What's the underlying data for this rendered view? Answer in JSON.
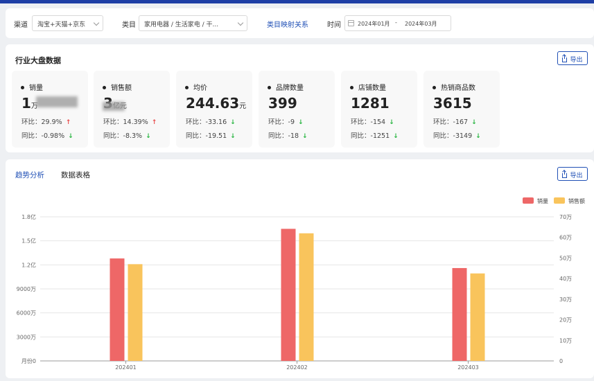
{
  "filters": {
    "channel_label": "渠道",
    "channel_value": "淘宝+天猫+京东",
    "category_label": "类目",
    "category_value": "家用电器 / 生活家电 / 干...",
    "mapping_link": "类目映射关系",
    "time_label": "时间",
    "time_start": "2024年01月",
    "time_separator": "-",
    "time_end": "2024年03月"
  },
  "overview": {
    "title": "行业大盘数据",
    "export_label": "导出",
    "metrics": [
      {
        "name": "销量",
        "value": "1",
        "unit": "万",
        "mom_label": "环比：",
        "mom": "29.9%",
        "mom_dir": "up",
        "yoy_label": "同比：",
        "yoy": "-0.98%",
        "yoy_dir": "down"
      },
      {
        "name": "销售额",
        "value": "3",
        "unit": "亿元",
        "mom_label": "环比：",
        "mom": "14.39%",
        "mom_dir": "up",
        "yoy_label": "同比：",
        "yoy": "-8.3%",
        "yoy_dir": "down"
      },
      {
        "name": "均价",
        "value": "244.63",
        "unit": "元",
        "mom_label": "环比：",
        "mom": "-33.16",
        "mom_dir": "down",
        "yoy_label": "同比：",
        "yoy": "-19.51",
        "yoy_dir": "down"
      },
      {
        "name": "品牌数量",
        "value": "399",
        "unit": "",
        "mom_label": "环比：",
        "mom": "-9",
        "mom_dir": "down",
        "yoy_label": "同比：",
        "yoy": "-18",
        "yoy_dir": "down"
      },
      {
        "name": "店铺数量",
        "value": "1281",
        "unit": "",
        "mom_label": "环比：",
        "mom": "-154",
        "mom_dir": "down",
        "yoy_label": "同比：",
        "yoy": "-1251",
        "yoy_dir": "down"
      },
      {
        "name": "热销商品数",
        "value": "3615",
        "unit": "",
        "mom_label": "环比：",
        "mom": "-167",
        "mom_dir": "down",
        "yoy_label": "同比：",
        "yoy": "-3149",
        "yoy_dir": "down"
      }
    ],
    "arrow_up": "↑",
    "arrow_down": "↓"
  },
  "trend": {
    "tab_trend": "趋势分析",
    "tab_table": "数据表格",
    "export_label": "导出"
  },
  "colors": {
    "primary": "#1f4fb5",
    "sales_volume": "#ee6767",
    "sales_amount": "#f9c45c",
    "up": "#e84a4a",
    "down": "#25b43e"
  },
  "chart_data": {
    "type": "bar",
    "categories": [
      "202401",
      "202402",
      "202403"
    ],
    "series": [
      {
        "name": "销量",
        "axis": "left",
        "values": [
          128000000,
          165000000,
          116000000
        ]
      },
      {
        "name": "销售额",
        "axis": "right",
        "values": 470000,
        "values_list": [
          470000,
          620000,
          425000
        ]
      }
    ],
    "left_ticks": [
      "月份0",
      "3000万",
      "6000万",
      "9000万",
      "1.2亿",
      "1.5亿",
      "1.8亿"
    ],
    "right_ticks": [
      "0",
      "10万",
      "20万",
      "30万",
      "40万",
      "50万",
      "60万",
      "70万"
    ],
    "ylim_left": [
      0,
      180000000
    ],
    "ylim_right": [
      0,
      700000
    ],
    "legend_position": "top-right",
    "grid": true
  }
}
